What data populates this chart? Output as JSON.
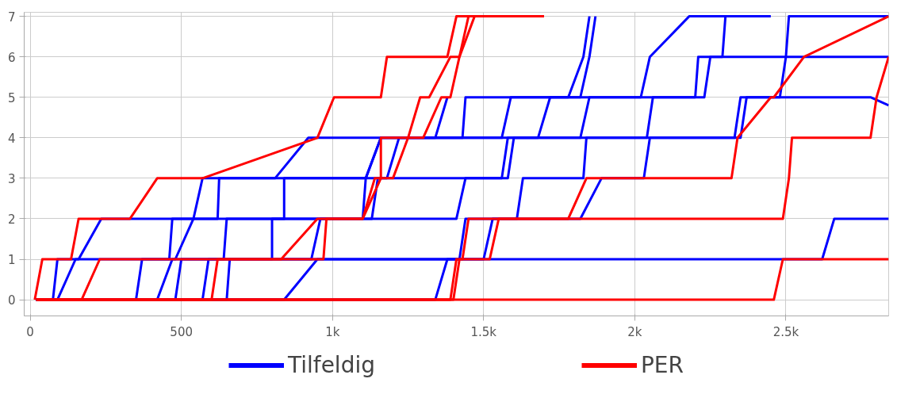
{
  "chart_data": {
    "type": "line",
    "xlim": [
      -20,
      2840
    ],
    "ylim": [
      -0.4,
      7.1
    ],
    "xticks": [
      0,
      500,
      {
        "value": 1000,
        "label": "1k"
      },
      {
        "value": 1500,
        "label": "1.5k"
      },
      {
        "value": 2000,
        "label": "2k"
      },
      {
        "value": 2500,
        "label": "2.5k"
      }
    ],
    "yticks": [
      0,
      1,
      2,
      3,
      4,
      5,
      6,
      7
    ],
    "grid": true,
    "legend": "bottom",
    "marker": "none",
    "line_style": "solid",
    "series": [
      {
        "name": "Tilfeldig",
        "color": "#0000ff",
        "x": [
          20,
          75,
          90,
          160,
          235,
          540,
          570,
          810,
          920,
          1820,
          1850,
          2230,
          2250,
          2840
        ],
        "values": [
          0,
          0,
          1,
          1,
          2,
          2,
          3,
          3,
          4,
          4,
          5,
          5,
          6,
          6
        ]
      },
      {
        "color": "#0000ff",
        "x": [
          20,
          90,
          150,
          460,
          470,
          620,
          625,
          1110,
          1160,
          1560,
          1590,
          1780,
          1830,
          1850
        ],
        "values": [
          0,
          0,
          1,
          1,
          2,
          2,
          3,
          3,
          4,
          4,
          5,
          5,
          6,
          7
        ]
      },
      {
        "color": "#0000ff",
        "x": [
          20,
          350,
          370,
          480,
          540,
          1100,
          1110,
          1160,
          1430,
          1440,
          2020,
          2050,
          2180,
          2450
        ],
        "values": [
          0,
          0,
          1,
          1,
          2,
          2,
          3,
          4,
          4,
          5,
          5,
          6,
          7,
          7
        ]
      },
      {
        "color": "#0000ff",
        "x": [
          20,
          420,
          470,
          800,
          800,
          1130,
          1150,
          1560,
          1580,
          1680,
          1720,
          1820,
          1850,
          1870
        ],
        "values": [
          0,
          0,
          1,
          1,
          2,
          2,
          3,
          3,
          4,
          4,
          5,
          5,
          6,
          7
        ]
      },
      {
        "color": "#0000ff",
        "x": [
          20,
          570,
          590,
          1420,
          1440,
          1820,
          1890,
          2030,
          2050,
          2350,
          2370,
          2480,
          2500,
          2510,
          2840
        ],
        "values": [
          0,
          0,
          1,
          1,
          2,
          2,
          3,
          3,
          4,
          4,
          5,
          5,
          6,
          7,
          7
        ]
      },
      {
        "color": "#0000ff",
        "x": [
          20,
          840,
          950,
          2620,
          2660,
          2840
        ],
        "values": [
          0,
          0,
          1,
          1,
          2,
          2
        ]
      },
      {
        "color": "#0000ff",
        "x": [
          20,
          1340,
          1380,
          1500,
          1530,
          1610,
          1630,
          1830,
          1840,
          2040,
          2060,
          2200,
          2210,
          2290,
          2300,
          2440
        ],
        "values": [
          0,
          0,
          1,
          1,
          2,
          2,
          3,
          3,
          4,
          4,
          5,
          5,
          6,
          6,
          7,
          7
        ]
      },
      {
        "color": "#0000ff",
        "x": [
          20,
          650,
          660,
          930,
          960,
          1410,
          1440,
          1580,
          1600,
          2330,
          2350,
          2780,
          2840
        ],
        "values": [
          0,
          0,
          1,
          1,
          2,
          2,
          3,
          3,
          4,
          4,
          5,
          5,
          4.8
        ]
      },
      {
        "color": "#0000ff",
        "x": [
          20,
          480,
          500,
          640,
          650,
          840,
          840,
          960,
          1180,
          1220,
          1340,
          1380
        ],
        "values": [
          0,
          0,
          1,
          1,
          2,
          2,
          3,
          3,
          3,
          4,
          4,
          5
        ]
      },
      {
        "name": "PER",
        "color": "#ff0000",
        "x": [
          15,
          40,
          135,
          160,
          330,
          420,
          570,
          950,
          1005,
          1160,
          1180,
          1380,
          1410,
          1700
        ],
        "values": [
          0,
          1,
          1,
          2,
          2,
          3,
          3,
          4,
          5,
          5,
          6,
          6,
          7,
          7
        ]
      },
      {
        "color": "#ff0000",
        "x": [
          20,
          170,
          230,
          830,
          950,
          1100,
          1160,
          1160,
          1250,
          1290,
          1320,
          1390,
          1420,
          1450,
          1620
        ],
        "values": [
          0,
          0,
          1,
          1,
          2,
          2,
          3,
          4,
          4,
          5,
          5,
          6,
          6,
          7,
          7
        ]
      },
      {
        "color": "#ff0000",
        "x": [
          20,
          600,
          620,
          970,
          980,
          1100,
          1140,
          1200,
          1250,
          1300,
          1360,
          1390,
          1420,
          1470,
          1610
        ],
        "values": [
          0,
          0,
          1,
          1,
          2,
          2,
          3,
          3,
          4,
          4,
          5,
          5,
          6,
          7,
          7
        ]
      },
      {
        "color": "#ff0000",
        "x": [
          20,
          1390,
          1410,
          1520,
          1550,
          1780,
          1840,
          2320,
          2340,
          2450,
          2460,
          2560,
          2840
        ],
        "values": [
          0,
          0,
          1,
          1,
          2,
          2,
          3,
          3,
          4,
          5,
          5,
          6,
          7
        ]
      },
      {
        "color": "#ff0000",
        "x": [
          20,
          2460,
          2490,
          2840
        ],
        "values": [
          0,
          0,
          1,
          1
        ]
      },
      {
        "color": "#ff0000",
        "x": [
          20,
          1400,
          1420,
          1430,
          1450,
          2490,
          2510,
          2520,
          2780,
          2800,
          2840
        ],
        "values": [
          0,
          0,
          1,
          1,
          2,
          2,
          3,
          4,
          4,
          5,
          6
        ]
      }
    ]
  }
}
